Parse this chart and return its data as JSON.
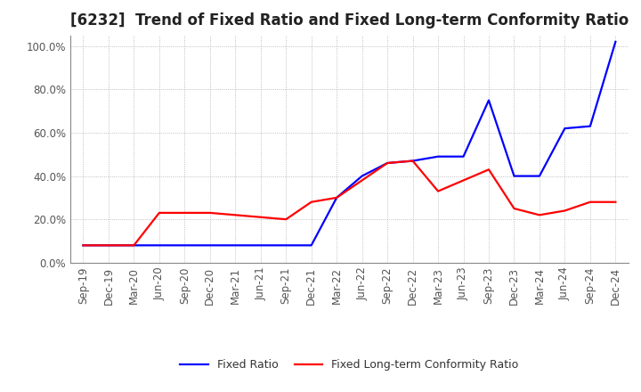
{
  "title": "[6232]  Trend of Fixed Ratio and Fixed Long-term Conformity Ratio",
  "x_labels": [
    "Sep-19",
    "Dec-19",
    "Mar-20",
    "Jun-20",
    "Sep-20",
    "Dec-20",
    "Mar-21",
    "Jun-21",
    "Sep-21",
    "Dec-21",
    "Mar-22",
    "Jun-22",
    "Sep-22",
    "Dec-22",
    "Mar-23",
    "Jun-23",
    "Sep-23",
    "Dec-23",
    "Mar-24",
    "Jun-24",
    "Sep-24",
    "Dec-24"
  ],
  "fixed_ratio": [
    0.08,
    0.08,
    0.08,
    0.08,
    0.08,
    0.08,
    0.08,
    0.08,
    0.08,
    0.08,
    0.3,
    0.4,
    0.46,
    0.47,
    0.49,
    0.49,
    0.75,
    0.4,
    0.4,
    0.62,
    0.63,
    1.02
  ],
  "fixed_lt_ratio": [
    0.08,
    0.08,
    0.08,
    0.23,
    0.23,
    0.23,
    0.22,
    0.21,
    0.2,
    0.28,
    0.3,
    0.38,
    0.46,
    0.47,
    0.33,
    0.38,
    0.43,
    0.25,
    0.22,
    0.24,
    0.28,
    0.28
  ],
  "fixed_ratio_color": "#0000FF",
  "fixed_lt_ratio_color": "#FF0000",
  "ylim_max": 1.05,
  "yticks": [
    0.0,
    0.2,
    0.4,
    0.6,
    0.8,
    1.0
  ],
  "ytick_labels": [
    "0.0%",
    "20.0%",
    "40.0%",
    "60.0%",
    "80.0%",
    "100.0%"
  ],
  "legend_fixed": "Fixed Ratio",
  "legend_lt": "Fixed Long-term Conformity Ratio",
  "background_color": "#FFFFFF",
  "grid_color": "#999999",
  "title_fontsize": 12,
  "axis_fontsize": 8.5,
  "legend_fontsize": 9,
  "line_width": 1.6
}
